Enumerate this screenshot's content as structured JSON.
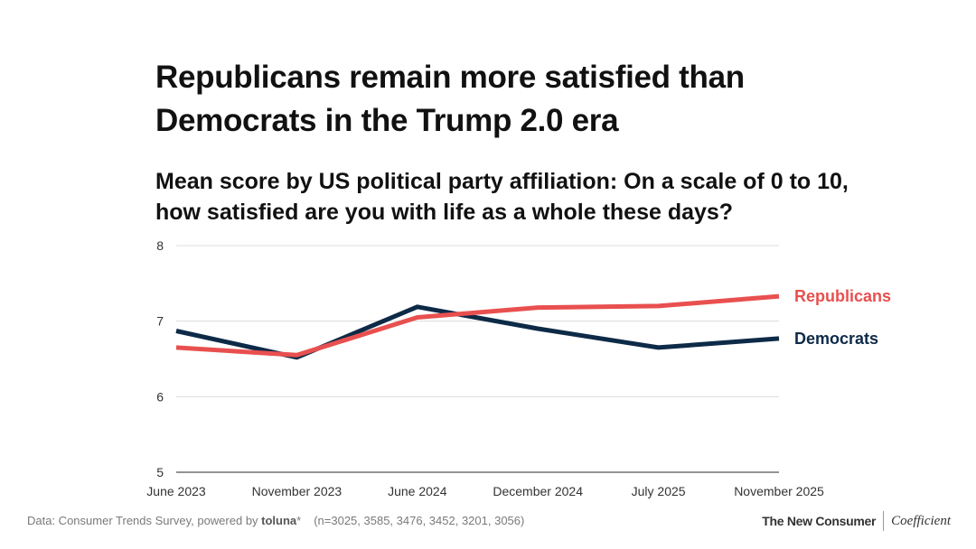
{
  "title": "Republicans remain more satisfied than Democrats in the Trump 2.0 era",
  "subtitle": "Mean score by US political party affiliation: On a scale of 0 to 10, how satisfied are you with life as a whole these days?",
  "chart_data": {
    "type": "line",
    "title": "Republicans remain more satisfied than Democrats in the Trump 2.0 era",
    "subtitle": "Mean score by US political party affiliation: On a scale of 0 to 10, how satisfied are you with life as a whole these days?",
    "categories": [
      "June 2023",
      "November 2023",
      "June 2024",
      "December 2024",
      "July 2025",
      "November 2025"
    ],
    "yticks": [
      5,
      6,
      7,
      8
    ],
    "ylim": [
      5,
      8
    ],
    "grid": true,
    "legend": "end-of-line labels",
    "series": [
      {
        "name": "Republicans",
        "color": "#e8504f",
        "values": [
          6.65,
          6.55,
          7.05,
          7.18,
          7.2,
          7.33
        ]
      },
      {
        "name": "Democrats",
        "color": "#0d2a47",
        "values": [
          6.87,
          6.52,
          7.19,
          6.9,
          6.65,
          6.77
        ]
      }
    ]
  },
  "footer": {
    "source_prefix": "Data: Consumer Trends Survey, powered by ",
    "source_brand": "toluna",
    "source_mark": "*",
    "sample_sizes": "(n=3025, 3585, 3476, 3452, 3201, 3056)",
    "logo_left": "The New Consumer",
    "logo_right": "Coefficient"
  }
}
